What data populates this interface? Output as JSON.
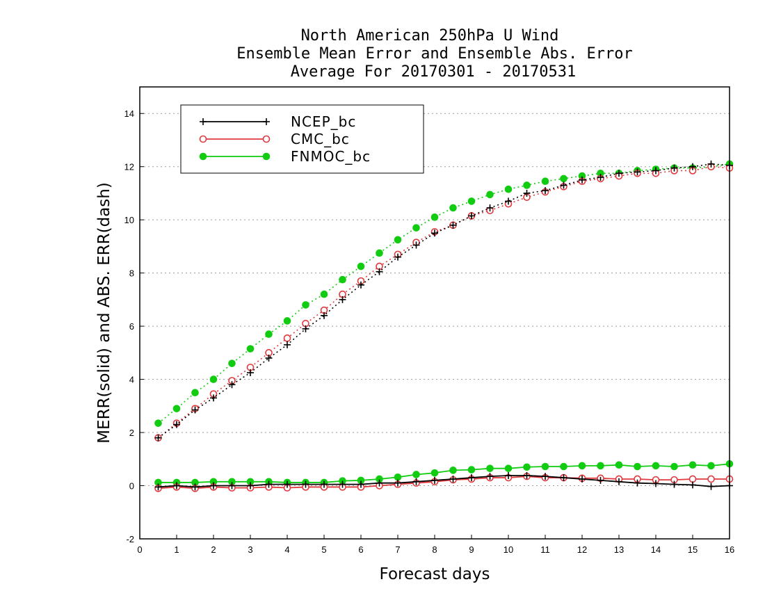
{
  "chart_data": {
    "type": "line",
    "title": [
      "North American 250hPa U Wind",
      "Ensemble Mean Error and Ensemble Abs. Error",
      "Average For 20170301 - 20170531"
    ],
    "xlabel": "Forecast days",
    "ylabel": "MERR(solid) and ABS. ERR(dash)",
    "xlim": [
      0,
      16
    ],
    "ylim": [
      -2,
      15
    ],
    "xticks": [
      0,
      1,
      2,
      3,
      4,
      5,
      6,
      7,
      8,
      9,
      10,
      11,
      12,
      13,
      14,
      15,
      16
    ],
    "yticks": [
      -2,
      0,
      2,
      4,
      6,
      8,
      10,
      12,
      14
    ],
    "grid": "horizontal dotted",
    "legend_position": "top-left",
    "x": [
      0.5,
      1,
      1.5,
      2,
      2.5,
      3,
      3.5,
      4,
      4.5,
      5,
      5.5,
      6,
      6.5,
      7,
      7.5,
      8,
      8.5,
      9,
      9.5,
      10,
      10.5,
      11,
      11.5,
      12,
      12.5,
      13,
      13.5,
      14,
      14.5,
      15,
      15.5,
      16
    ],
    "series": [
      {
        "name": "NCEP_bc",
        "color": "#000000",
        "marker": "plus",
        "merr": [
          -0.05,
          0.0,
          -0.05,
          0.0,
          0.0,
          0.0,
          0.05,
          0.05,
          0.05,
          0.05,
          0.05,
          0.05,
          0.1,
          0.1,
          0.15,
          0.2,
          0.25,
          0.3,
          0.35,
          0.38,
          0.38,
          0.35,
          0.3,
          0.25,
          0.2,
          0.15,
          0.1,
          0.08,
          0.05,
          0.03,
          -0.03,
          0.0
        ],
        "abs_err": [
          1.8,
          2.3,
          2.85,
          3.3,
          3.8,
          4.25,
          4.8,
          5.3,
          5.9,
          6.4,
          7.0,
          7.55,
          8.05,
          8.6,
          9.05,
          9.5,
          9.8,
          10.15,
          10.45,
          10.7,
          11.0,
          11.1,
          11.3,
          11.5,
          11.6,
          11.75,
          11.8,
          11.85,
          11.95,
          12.0,
          12.1,
          12.05
        ]
      },
      {
        "name": "CMC_bc",
        "color": "#e0393e",
        "marker": "open-circle",
        "merr": [
          -0.1,
          -0.05,
          -0.1,
          -0.05,
          -0.08,
          -0.08,
          -0.05,
          -0.08,
          -0.05,
          -0.05,
          -0.05,
          -0.05,
          0.0,
          0.05,
          0.1,
          0.15,
          0.22,
          0.25,
          0.3,
          0.3,
          0.35,
          0.3,
          0.3,
          0.28,
          0.28,
          0.25,
          0.25,
          0.22,
          0.22,
          0.25,
          0.25,
          0.25
        ],
        "abs_err": [
          1.8,
          2.35,
          2.9,
          3.45,
          3.95,
          4.45,
          5.0,
          5.55,
          6.1,
          6.6,
          7.2,
          7.7,
          8.25,
          8.7,
          9.15,
          9.55,
          9.8,
          10.15,
          10.35,
          10.6,
          10.85,
          11.05,
          11.25,
          11.45,
          11.55,
          11.65,
          11.75,
          11.75,
          11.85,
          11.85,
          12.0,
          11.95
        ]
      },
      {
        "name": "FNMOC_bc",
        "color": "#11cc11",
        "marker": "filled-circle",
        "merr": [
          0.12,
          0.12,
          0.12,
          0.15,
          0.15,
          0.15,
          0.15,
          0.12,
          0.12,
          0.12,
          0.18,
          0.2,
          0.25,
          0.32,
          0.42,
          0.48,
          0.58,
          0.6,
          0.65,
          0.65,
          0.7,
          0.72,
          0.72,
          0.75,
          0.75,
          0.78,
          0.72,
          0.75,
          0.72,
          0.78,
          0.75,
          0.82
        ],
        "abs_err": [
          2.35,
          2.9,
          3.5,
          4.0,
          4.6,
          5.15,
          5.7,
          6.2,
          6.8,
          7.2,
          7.75,
          8.25,
          8.75,
          9.25,
          9.7,
          10.1,
          10.45,
          10.7,
          10.95,
          11.15,
          11.3,
          11.45,
          11.55,
          11.65,
          11.75,
          11.75,
          11.85,
          11.9,
          11.95,
          11.95,
          12.0,
          12.1
        ]
      }
    ]
  }
}
